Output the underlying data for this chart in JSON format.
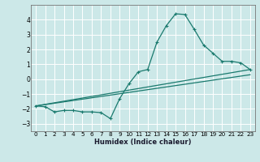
{
  "title": "",
  "xlabel": "Humidex (Indice chaleur)",
  "background_color": "#cce8e8",
  "grid_color": "#ffffff",
  "line_color": "#1a7a6e",
  "xlim": [
    -0.5,
    23.5
  ],
  "ylim": [
    -3.5,
    5.0
  ],
  "yticks": [
    -3,
    -2,
    -1,
    0,
    1,
    2,
    3,
    4
  ],
  "xticks": [
    0,
    1,
    2,
    3,
    4,
    5,
    6,
    7,
    8,
    9,
    10,
    11,
    12,
    13,
    14,
    15,
    16,
    17,
    18,
    19,
    20,
    21,
    22,
    23
  ],
  "series_main": {
    "x": [
      0,
      1,
      2,
      3,
      4,
      5,
      6,
      7,
      8,
      9,
      10,
      11,
      12,
      13,
      14,
      15,
      16,
      17,
      18,
      19,
      20,
      21,
      22,
      23
    ],
    "y": [
      -1.8,
      -1.85,
      -2.2,
      -2.1,
      -2.1,
      -2.2,
      -2.2,
      -2.25,
      -2.65,
      -1.3,
      -0.3,
      0.5,
      0.65,
      2.5,
      3.6,
      4.4,
      4.35,
      3.35,
      2.3,
      1.75,
      1.2,
      1.2,
      1.1,
      0.65
    ]
  },
  "series_line1": {
    "x": [
      0,
      23
    ],
    "y": [
      -1.8,
      0.65
    ]
  },
  "series_line2": {
    "x": [
      0,
      23
    ],
    "y": [
      -1.8,
      0.3
    ]
  }
}
